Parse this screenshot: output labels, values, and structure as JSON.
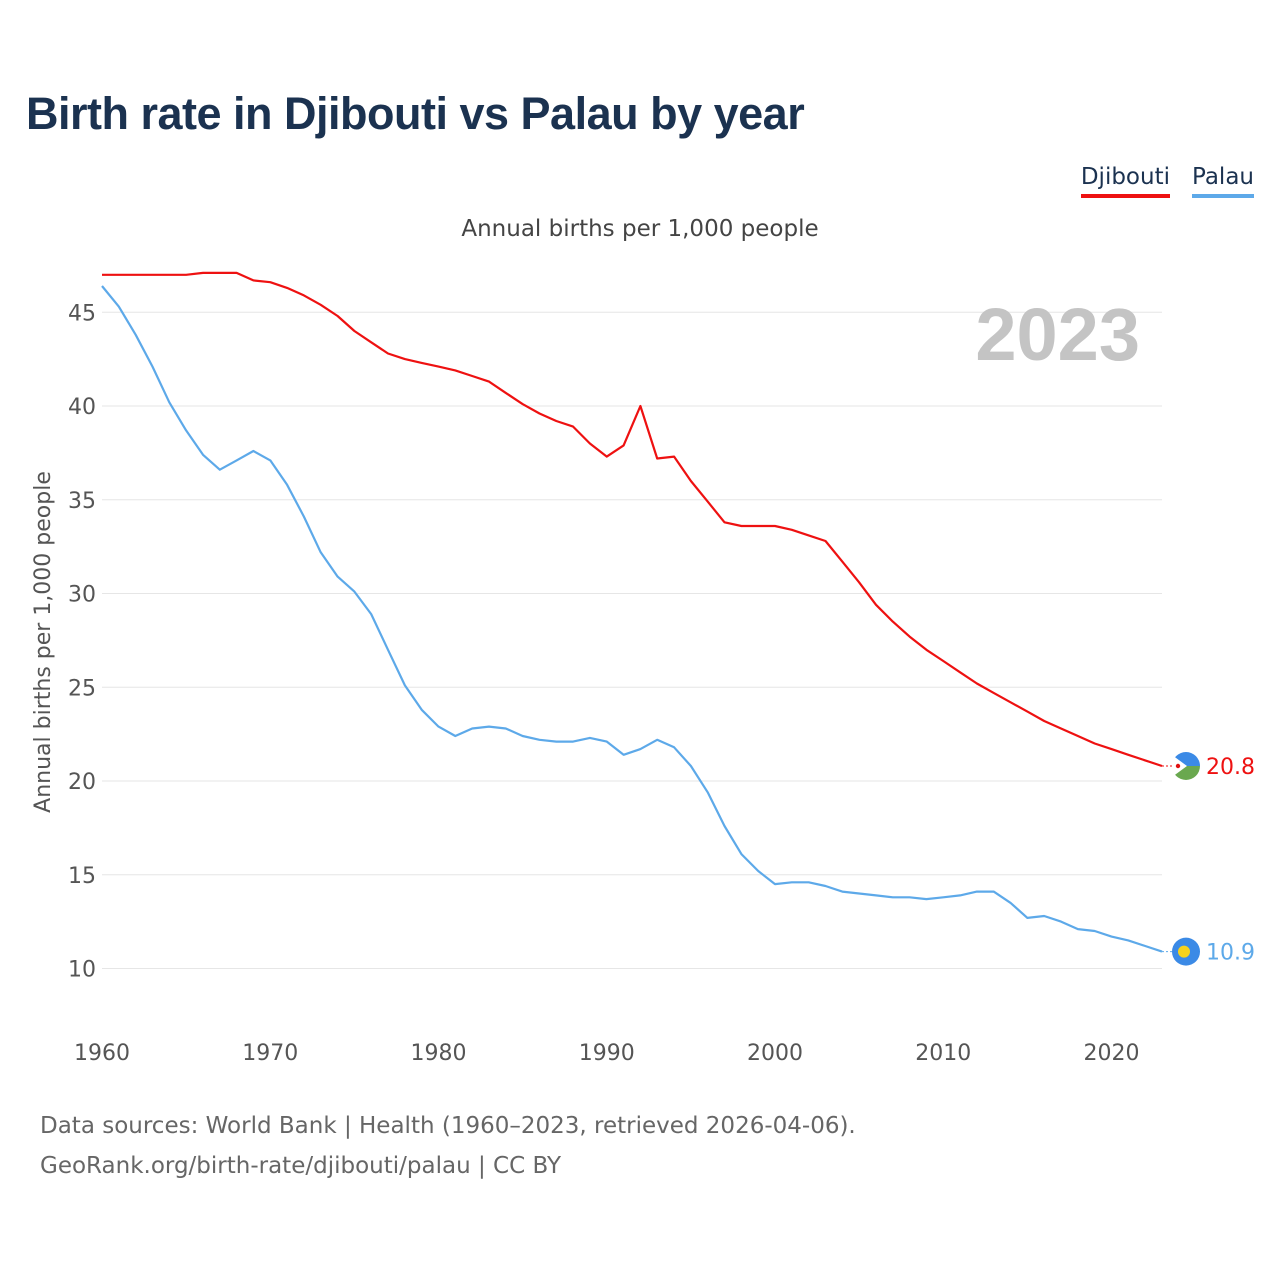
{
  "header": {
    "title": "Birth rate in Djibouti vs Palau by year",
    "subtitle": "Annual births per 1,000 people"
  },
  "legend": [
    {
      "label": "Djibouti",
      "color": "#ee1111"
    },
    {
      "label": "Palau",
      "color": "#5da9e9"
    }
  ],
  "footer": {
    "line1": "Data sources: World Bank | Health (1960–2023, retrieved 2026-04-06).",
    "line2": "GeoRank.org/birth-rate/djibouti/palau | CC BY"
  },
  "chart_data": {
    "type": "line",
    "title": "Birth rate in Djibouti vs Palau by year",
    "ylabel": "Annual births per 1,000 people",
    "xlabel": "",
    "year_label": "2023",
    "xlim": [
      1960,
      2023
    ],
    "ylim": [
      8,
      48
    ],
    "x_ticks": [
      1960,
      1970,
      1980,
      1990,
      2000,
      2010,
      2020
    ],
    "y_ticks": [
      10,
      15,
      20,
      25,
      30,
      35,
      40,
      45
    ],
    "x": [
      1960,
      1961,
      1962,
      1963,
      1964,
      1965,
      1966,
      1967,
      1968,
      1969,
      1970,
      1971,
      1972,
      1973,
      1974,
      1975,
      1976,
      1977,
      1978,
      1979,
      1980,
      1981,
      1982,
      1983,
      1984,
      1985,
      1986,
      1987,
      1988,
      1989,
      1990,
      1991,
      1992,
      1993,
      1994,
      1995,
      1996,
      1997,
      1998,
      1999,
      2000,
      2001,
      2002,
      2003,
      2004,
      2005,
      2006,
      2007,
      2008,
      2009,
      2010,
      2011,
      2012,
      2013,
      2014,
      2015,
      2016,
      2017,
      2018,
      2019,
      2020,
      2021,
      2022,
      2023
    ],
    "series": [
      {
        "name": "Djibouti",
        "color": "#ee1111",
        "end_label": "20.8",
        "values": [
          47.0,
          47.0,
          47.0,
          47.0,
          47.0,
          47.0,
          47.1,
          47.1,
          47.1,
          46.7,
          46.6,
          46.3,
          45.9,
          45.4,
          44.8,
          44.0,
          43.4,
          42.8,
          42.5,
          42.3,
          42.1,
          41.9,
          41.6,
          41.3,
          40.7,
          40.1,
          39.6,
          39.2,
          38.9,
          38.0,
          37.3,
          37.9,
          40.0,
          37.2,
          37.3,
          36.0,
          34.9,
          33.8,
          33.6,
          33.6,
          33.6,
          33.4,
          33.1,
          32.8,
          31.7,
          30.6,
          29.4,
          28.5,
          27.7,
          27.0,
          26.4,
          25.8,
          25.2,
          24.7,
          24.2,
          23.7,
          23.2,
          22.8,
          22.4,
          22.0,
          21.7,
          21.4,
          21.1,
          20.8
        ]
      },
      {
        "name": "Palau",
        "color": "#5da9e9",
        "end_label": "10.9",
        "values": [
          46.4,
          45.3,
          43.8,
          42.1,
          40.2,
          38.7,
          37.4,
          36.6,
          37.1,
          37.6,
          37.1,
          35.8,
          34.1,
          32.2,
          30.9,
          30.1,
          28.9,
          27.0,
          25.1,
          23.8,
          22.9,
          22.4,
          22.8,
          22.9,
          22.8,
          22.4,
          22.2,
          22.1,
          22.1,
          22.3,
          22.1,
          21.4,
          21.7,
          22.2,
          21.8,
          20.8,
          19.4,
          17.6,
          16.1,
          15.2,
          14.5,
          14.6,
          14.6,
          14.4,
          14.1,
          14.0,
          13.9,
          13.8,
          13.8,
          13.7,
          13.8,
          13.9,
          14.1,
          14.1,
          13.5,
          12.7,
          12.8,
          12.5,
          12.1,
          12.0,
          11.7,
          11.5,
          11.2,
          10.9
        ]
      }
    ]
  }
}
